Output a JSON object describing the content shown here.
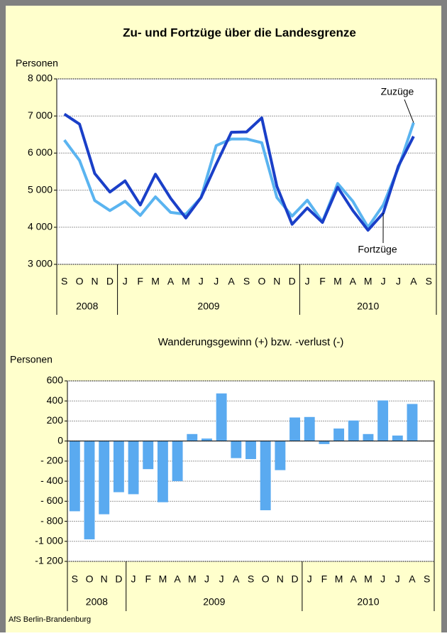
{
  "chart_data": [
    {
      "type": "line",
      "title": "Zu- und Fortzüge über die Landesgrenze",
      "y_label": "Personen",
      "categories": [
        "S",
        "O",
        "N",
        "D",
        "J",
        "F",
        "M",
        "A",
        "M",
        "J",
        "J",
        "A",
        "S",
        "O",
        "N",
        "D",
        "J",
        "F",
        "M",
        "A",
        "M",
        "J",
        "J",
        "A",
        "S"
      ],
      "groups": [
        {
          "label": "2008",
          "span": 4
        },
        {
          "label": "2009",
          "span": 12
        },
        {
          "label": "2010",
          "span": 9
        }
      ],
      "series": [
        {
          "name": "Zuzüge",
          "color": "#5ab4f0",
          "values": [
            6350,
            5800,
            4720,
            4450,
            4700,
            4320,
            4820,
            4400,
            4350,
            4800,
            6200,
            6380,
            6380,
            6280,
            4800,
            4300,
            4730,
            4150,
            5180,
            4700,
            4000,
            4600,
            5600,
            6820,
            null
          ]
        },
        {
          "name": "Fortzüge",
          "color": "#1a3fc8",
          "values": [
            7050,
            6780,
            5450,
            4950,
            5250,
            4600,
            5430,
            4780,
            4250,
            4800,
            5700,
            6560,
            6570,
            6950,
            5100,
            4080,
            4520,
            4130,
            5080,
            4450,
            3920,
            4380,
            5650,
            6450,
            null
          ]
        }
      ],
      "ylim": [
        3000,
        8000
      ],
      "yticks": [
        {
          "value": 3000,
          "label": "3 000"
        },
        {
          "value": 4000,
          "label": "4 000"
        },
        {
          "value": 5000,
          "label": "5 000"
        },
        {
          "value": 6000,
          "label": "6 000"
        },
        {
          "value": 7000,
          "label": "7 000"
        },
        {
          "value": 8000,
          "label": "8 000"
        }
      ],
      "grid": true
    },
    {
      "type": "bar",
      "title": "Wanderungsgewinn (+) bzw. -verlust (-)",
      "y_label": "Personen",
      "categories": [
        "S",
        "O",
        "N",
        "D",
        "J",
        "F",
        "M",
        "A",
        "M",
        "J",
        "J",
        "A",
        "S",
        "O",
        "N",
        "D",
        "J",
        "F",
        "M",
        "A",
        "M",
        "J",
        "J",
        "A",
        "S"
      ],
      "groups": [
        {
          "label": "2008",
          "span": 4
        },
        {
          "label": "2009",
          "span": 12
        },
        {
          "label": "2010",
          "span": 9
        }
      ],
      "color": "#5aaaf0",
      "values": [
        -700,
        -980,
        -730,
        -510,
        -530,
        -280,
        -610,
        -400,
        70,
        25,
        475,
        -170,
        -180,
        -690,
        -290,
        235,
        240,
        -30,
        125,
        205,
        70,
        405,
        55,
        370,
        null
      ],
      "ylim": [
        -1200,
        600
      ],
      "yticks": [
        {
          "value": -1200,
          "label": "-1 200"
        },
        {
          "value": -1000,
          "label": "-1 000"
        },
        {
          "value": -800,
          "label": "- 800"
        },
        {
          "value": -600,
          "label": "- 600"
        },
        {
          "value": -400,
          "label": "- 400"
        },
        {
          "value": -200,
          "label": "- 200"
        },
        0,
        200,
        400,
        600
      ],
      "grid": true
    }
  ],
  "footer": "AfS Berlin-Brandenburg"
}
